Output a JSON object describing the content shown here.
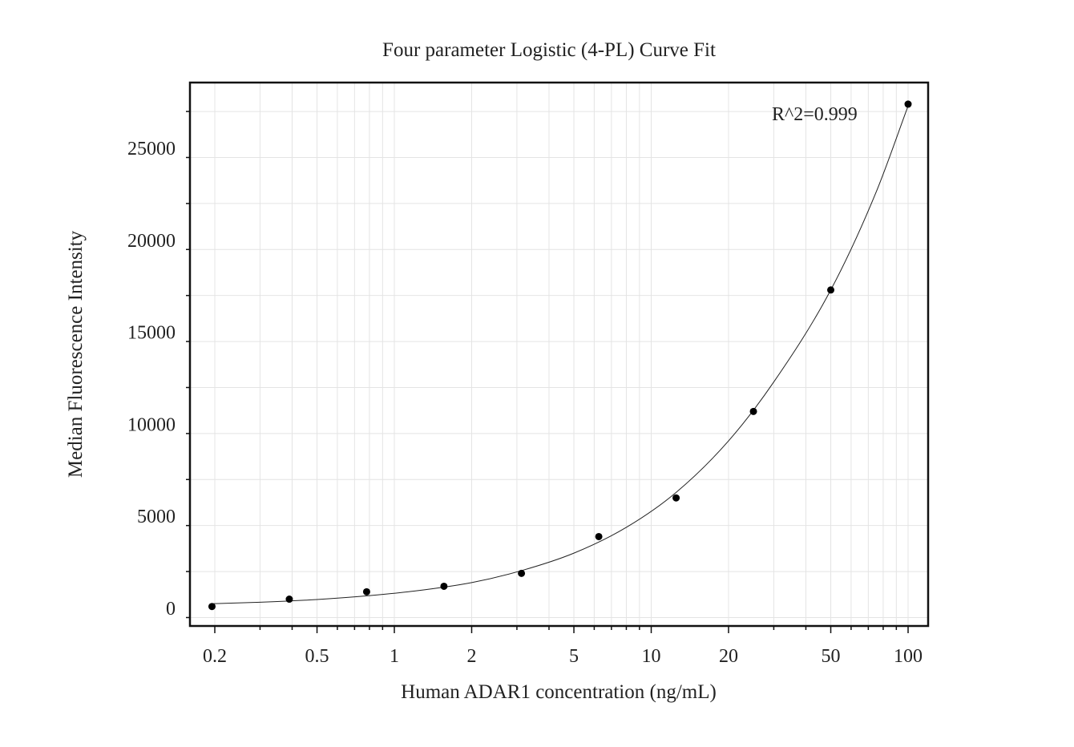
{
  "chart_data": {
    "type": "scatter",
    "title": "Four parameter Logistic (4-PL) Curve Fit",
    "xlabel": "Human ADAR1 concentration (ng/mL)",
    "ylabel": "Median Fluorescence Intensity",
    "x_scale": "log",
    "xlim": [
      0.16,
      125
    ],
    "ylim": [
      -1000,
      28000
    ],
    "x_ticks": [
      0.2,
      0.5,
      1,
      2,
      5,
      10,
      20,
      50,
      100
    ],
    "x_tick_labels": [
      "0.2",
      "0.5",
      "1",
      "2",
      "5",
      "10",
      "20",
      "50",
      "100"
    ],
    "y_ticks": [
      0,
      5000,
      10000,
      15000,
      20000,
      25000
    ],
    "y_tick_labels": [
      "0",
      "5000",
      "10000",
      "15000",
      "20000",
      "25000"
    ],
    "grid": true,
    "annotation": "R^2=0.999",
    "series": [
      {
        "x": [
          0.195,
          0.39,
          0.78,
          1.56,
          3.125,
          6.25,
          12.5,
          25,
          50,
          100
        ],
        "y": [
          100,
          500,
          900,
          1200,
          1900,
          3900,
          6000,
          10700,
          17300,
          27400
        ]
      }
    ],
    "fit_curve": {
      "type": "4PL",
      "x": [
        0.195,
        0.3,
        0.5,
        0.8,
        1.2,
        2,
        3.125,
        5,
        8,
        12.5,
        20,
        30,
        50,
        75,
        100
      ],
      "y": [
        250,
        330,
        480,
        690,
        940,
        1400,
        2050,
        3000,
        4400,
        6300,
        9100,
        12300,
        17300,
        22600,
        27300
      ]
    }
  }
}
